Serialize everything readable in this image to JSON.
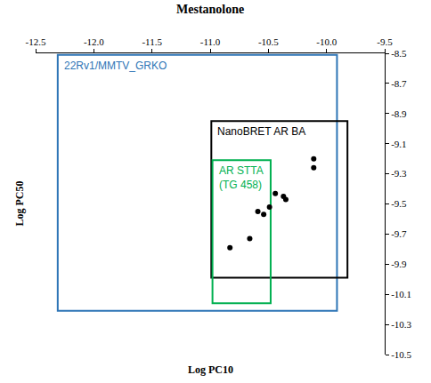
{
  "chart_data": {
    "type": "scatter",
    "title": "Mestanolone",
    "x_label": "Log PC10",
    "y_label": "Log PC50",
    "x": [
      -10.83,
      -10.66,
      -10.59,
      -10.54,
      -10.49,
      -10.44,
      -10.37,
      -10.35,
      -10.11,
      -10.11
    ],
    "values": [
      -9.79,
      -9.73,
      -9.55,
      -9.57,
      -9.52,
      -9.43,
      -9.45,
      -9.47,
      -9.2,
      -9.26
    ],
    "color": "#000000",
    "marker": "circle",
    "xlim": [
      -12.5,
      -9.5
    ],
    "ylim": [
      -10.5,
      -8.5
    ],
    "xticks": [
      -12.5,
      {
        "value": -12,
        "label": "-12.0"
      },
      -11.5,
      {
        "value": -11,
        "label": "-11.0"
      },
      -10.5,
      {
        "value": -10,
        "label": "-10.0"
      },
      -9.5
    ],
    "yticks": [
      -8.5,
      -8.7,
      -8.9,
      -9.1,
      -9.3,
      -9.5,
      -9.7,
      -9.9,
      -10.1,
      -10.3,
      -10.5
    ],
    "grid": false,
    "regions": [
      {
        "name": "22Rv1/MMTV_GRKO",
        "color": "#2e75b6",
        "x": [
          -12.31,
          -9.91
        ],
        "y": [
          -10.21,
          -8.51
        ]
      },
      {
        "name": "NanoBRET AR BA",
        "color": "#000000",
        "x": [
          -10.99,
          -9.82
        ],
        "y": [
          -9.99,
          -8.95
        ]
      },
      {
        "name": "AR STTA\n(TG 458)",
        "color": "#00b050",
        "x": [
          -10.98,
          -10.48
        ],
        "y": [
          -10.16,
          -9.21
        ]
      }
    ]
  }
}
